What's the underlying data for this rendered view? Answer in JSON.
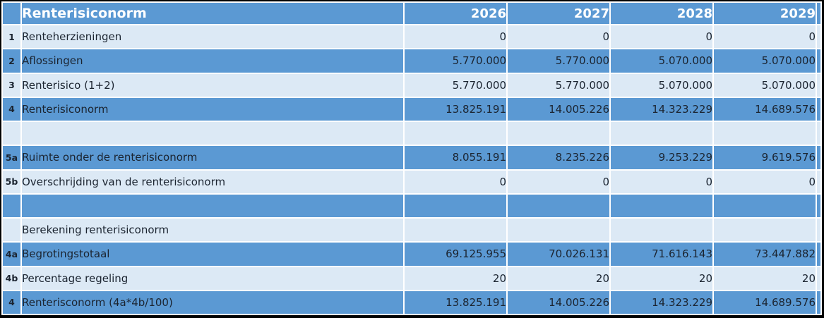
{
  "table": {
    "title": "Renterisiconorm",
    "years": [
      "2026",
      "2027",
      "2028",
      "2029"
    ],
    "rows": [
      {
        "num": "1",
        "label": "Renteherzieningen",
        "values": [
          "0",
          "0",
          "0",
          "0"
        ],
        "style": "light"
      },
      {
        "num": "2",
        "label": "Aflossingen",
        "values": [
          "5.770.000",
          "5.770.000",
          "5.070.000",
          "5.070.000"
        ],
        "style": "blue"
      },
      {
        "num": "3",
        "label": "Renterisico (1+2)",
        "values": [
          "5.770.000",
          "5.770.000",
          "5.070.000",
          "5.070.000"
        ],
        "style": "light"
      },
      {
        "num": "4",
        "label": "Renterisiconorm",
        "values": [
          "13.825.191",
          "14.005.226",
          "14.323.229",
          "14.689.576"
        ],
        "style": "blue"
      },
      {
        "num": "",
        "label": "",
        "values": [
          "",
          "",
          "",
          ""
        ],
        "style": "light"
      },
      {
        "num": "5a",
        "label": "Ruimte onder de renterisiconorm",
        "values": [
          "8.055.191",
          "8.235.226",
          "9.253.229",
          "9.619.576"
        ],
        "style": "blue"
      },
      {
        "num": "5b",
        "label": "Overschrijding van de renterisiconorm",
        "values": [
          "0",
          "0",
          "0",
          "0"
        ],
        "style": "light"
      },
      {
        "num": "",
        "label": "",
        "values": [
          "",
          "",
          "",
          ""
        ],
        "style": "blue"
      },
      {
        "num": "",
        "label": "Berekening renterisiconorm",
        "values": [
          "",
          "",
          "",
          ""
        ],
        "style": "light"
      },
      {
        "num": "4a",
        "label": "Begrotingstotaal",
        "values": [
          "69.125.955",
          "70.026.131",
          "71.616.143",
          "73.447.882"
        ],
        "style": "blue"
      },
      {
        "num": "4b",
        "label": "Percentage regeling",
        "values": [
          "20",
          "20",
          "20",
          "20"
        ],
        "style": "light"
      },
      {
        "num": "4",
        "label": "Renterisconorm (4a*4b/100)",
        "values": [
          "13.825.191",
          "14.005.226",
          "14.323.229",
          "14.689.576"
        ],
        "style": "blue"
      }
    ],
    "colors": {
      "blue": "#5b99d3",
      "light": "#dce9f5",
      "header_text": "#ffffff",
      "body_text": "#1b2430",
      "separator": "#ffffff",
      "border": "#000000"
    }
  },
  "chart_data": {
    "type": "table",
    "title": "Renterisiconorm",
    "columns": [
      "",
      "Renterisiconorm",
      "2026",
      "2027",
      "2028",
      "2029"
    ],
    "rows": [
      [
        "1",
        "Renteherzieningen",
        "0",
        "0",
        "0",
        "0"
      ],
      [
        "2",
        "Aflossingen",
        "5.770.000",
        "5.770.000",
        "5.070.000",
        "5.070.000"
      ],
      [
        "3",
        "Renterisico (1+2)",
        "5.770.000",
        "5.770.000",
        "5.070.000",
        "5.070.000"
      ],
      [
        "4",
        "Renterisiconorm",
        "13.825.191",
        "14.005.226",
        "14.323.229",
        "14.689.576"
      ],
      [
        "",
        "",
        "",
        "",
        "",
        ""
      ],
      [
        "5a",
        "Ruimte onder de renterisiconorm",
        "8.055.191",
        "8.235.226",
        "9.253.229",
        "9.619.576"
      ],
      [
        "5b",
        "Overschrijding van de renterisiconorm",
        "0",
        "0",
        "0",
        "0"
      ],
      [
        "",
        "",
        "",
        "",
        "",
        ""
      ],
      [
        "",
        "Berekening renterisiconorm",
        "",
        "",
        "",
        ""
      ],
      [
        "4a",
        "Begrotingstotaal",
        "69.125.955",
        "70.026.131",
        "71.616.143",
        "73.447.882"
      ],
      [
        "4b",
        "Percentage regeling",
        "20",
        "20",
        "20",
        "20"
      ],
      [
        "4",
        "Renterisconorm (4a*4b/100)",
        "13.825.191",
        "14.005.226",
        "14.323.229",
        "14.689.576"
      ]
    ],
    "layout_hints": {
      "header_fill": "#5b99d3",
      "row_fills_alternating": [
        "#dce9f5",
        "#5b99d3"
      ],
      "values_align": "right"
    }
  }
}
